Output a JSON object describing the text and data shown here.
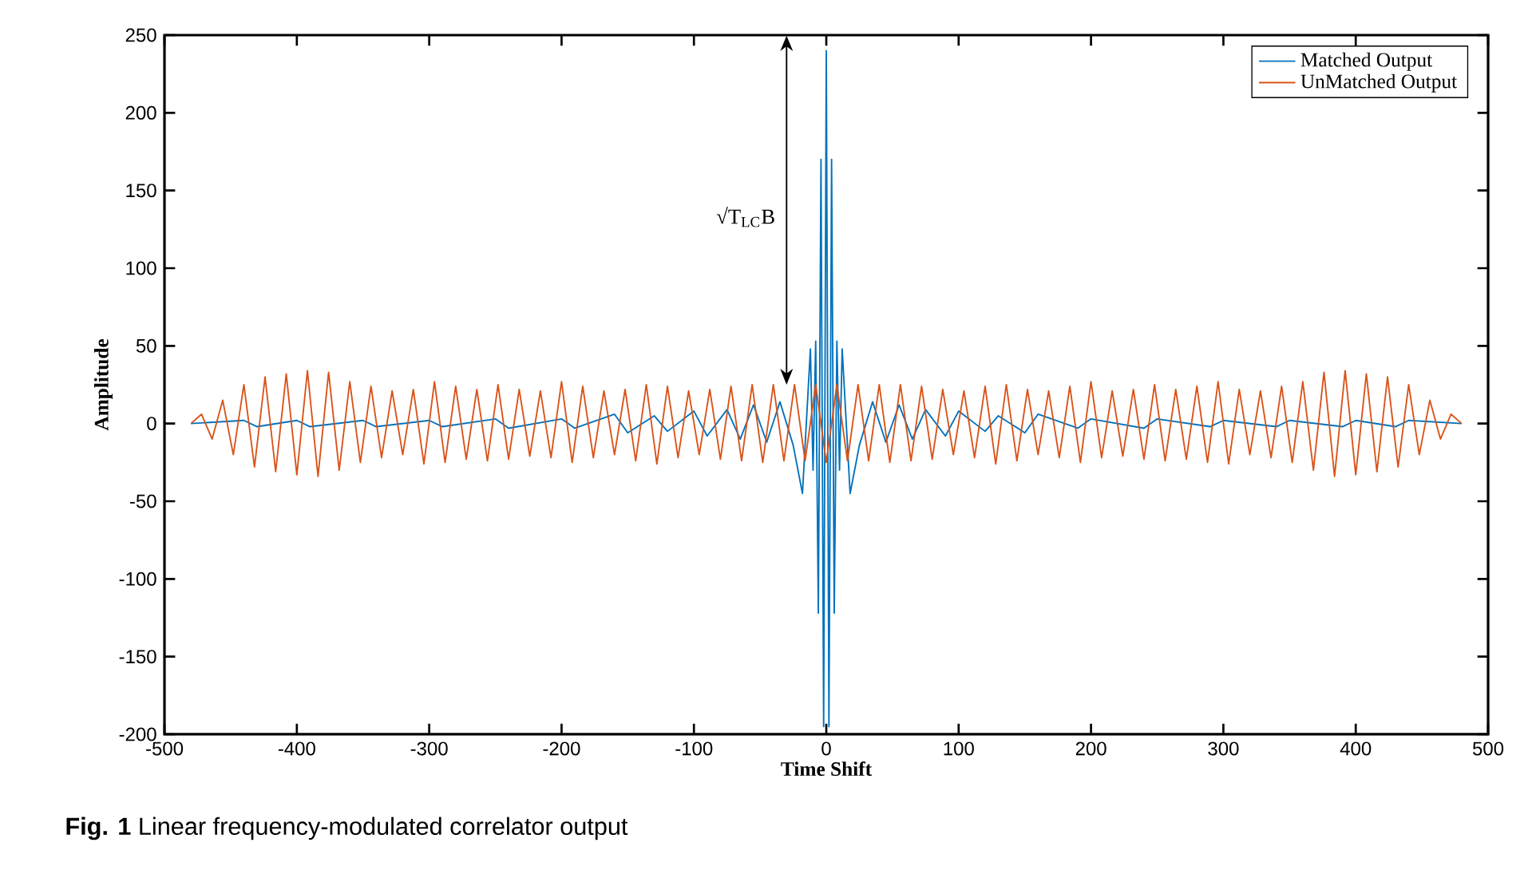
{
  "chart_data": {
    "type": "line",
    "xlabel": "Time Shift",
    "ylabel": "Amplitude",
    "xlim": [
      -500,
      500
    ],
    "ylim": [
      -200,
      250
    ],
    "xticks": [
      -500,
      -400,
      -300,
      -200,
      -100,
      0,
      100,
      200,
      300,
      400,
      500
    ],
    "yticks": [
      -200,
      -150,
      -100,
      -50,
      0,
      50,
      100,
      150,
      200,
      250
    ],
    "grid": false,
    "legend": "top right",
    "marker": "none",
    "line_style": "solid",
    "series": [
      {
        "name": "Matched Output",
        "color": "#0072bd",
        "x": [
          -480,
          -440,
          -430,
          -400,
          -390,
          -350,
          -340,
          -300,
          -290,
          -250,
          -240,
          -200,
          -190,
          -160,
          -150,
          -130,
          -120,
          -100,
          -90,
          -75,
          -65,
          -55,
          -45,
          -35,
          -25,
          -18,
          -12,
          -10,
          -8,
          -6,
          -4,
          -2,
          0,
          2,
          4,
          6,
          8,
          10,
          12,
          18,
          25,
          35,
          45,
          55,
          65,
          75,
          90,
          100,
          120,
          130,
          150,
          160,
          190,
          200,
          240,
          250,
          290,
          300,
          340,
          350,
          390,
          400,
          430,
          440,
          480
        ],
        "values": [
          0,
          2,
          -2,
          2,
          -2,
          2,
          -2,
          2,
          -2,
          3,
          -3,
          3,
          -3,
          6,
          -6,
          5,
          -5,
          8,
          -8,
          9,
          -10,
          12,
          -12,
          14,
          -14,
          -45,
          48,
          -30,
          53,
          -122,
          170,
          -195,
          240,
          -195,
          170,
          -122,
          53,
          -30,
          48,
          -45,
          -14,
          14,
          -12,
          12,
          -10,
          9,
          -8,
          8,
          -5,
          5,
          -6,
          6,
          -3,
          3,
          -3,
          3,
          -2,
          2,
          -2,
          2,
          -2,
          2,
          -2,
          2,
          0
        ]
      },
      {
        "name": "UnMatched Output",
        "color": "#d95319",
        "x": [
          -480,
          -472,
          -464,
          -456,
          -448,
          -440,
          -432,
          -424,
          -416,
          -408,
          -400,
          -392,
          -384,
          -376,
          -368,
          -360,
          -352,
          -344,
          -336,
          -328,
          -320,
          -312,
          -304,
          -296,
          -288,
          -280,
          -272,
          -264,
          -256,
          -248,
          -240,
          -232,
          -224,
          -216,
          -208,
          -200,
          -192,
          -184,
          -176,
          -168,
          -160,
          -152,
          -144,
          -136,
          -128,
          -120,
          -112,
          -104,
          -96,
          -88,
          -80,
          -72,
          -64,
          -56,
          -48,
          -40,
          -32,
          -24,
          -16,
          -8,
          0,
          8,
          16,
          24,
          32,
          40,
          48,
          56,
          64,
          72,
          80,
          88,
          96,
          104,
          112,
          120,
          128,
          136,
          144,
          152,
          160,
          168,
          176,
          184,
          192,
          200,
          208,
          216,
          224,
          232,
          240,
          248,
          256,
          264,
          272,
          280,
          288,
          296,
          304,
          312,
          320,
          328,
          336,
          344,
          352,
          360,
          368,
          376,
          384,
          392,
          400,
          408,
          416,
          424,
          432,
          440,
          448,
          456,
          464,
          472,
          480
        ],
        "values": [
          0,
          6,
          -10,
          15,
          -20,
          25,
          -28,
          30,
          -31,
          32,
          -33,
          34,
          -34,
          33,
          -30,
          27,
          -25,
          24,
          -22,
          21,
          -20,
          22,
          -26,
          27,
          -25,
          24,
          -23,
          22,
          -24,
          25,
          -23,
          22,
          -21,
          21,
          -22,
          27,
          -25,
          24,
          -22,
          21,
          -20,
          22,
          -24,
          25,
          -26,
          24,
          -22,
          21,
          -20,
          22,
          -23,
          24,
          -24,
          25,
          -25,
          25,
          -24,
          25,
          -24,
          25,
          -25,
          25,
          -24,
          25,
          -24,
          25,
          -25,
          25,
          -24,
          24,
          -23,
          22,
          -20,
          21,
          -22,
          24,
          -26,
          25,
          -24,
          22,
          -20,
          21,
          -22,
          24,
          -25,
          27,
          -22,
          21,
          -21,
          22,
          -23,
          25,
          -24,
          22,
          -23,
          24,
          -25,
          27,
          -26,
          22,
          -20,
          21,
          -22,
          24,
          -25,
          27,
          -30,
          33,
          -34,
          34,
          -33,
          32,
          -31,
          30,
          -28,
          25,
          -20,
          15,
          -10,
          6,
          0
        ]
      }
    ],
    "annotations": [
      "√T$_{LC}$B",
      "**Fig. 1** Linear frequency-modulated correlator output"
    ]
  }
}
